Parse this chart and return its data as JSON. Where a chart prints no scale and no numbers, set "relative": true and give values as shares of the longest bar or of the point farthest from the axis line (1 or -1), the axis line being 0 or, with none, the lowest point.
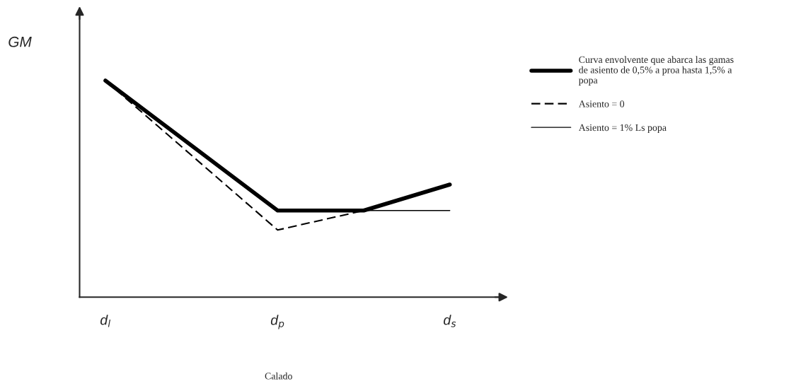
{
  "chart_data": {
    "type": "line",
    "relative": true,
    "ylabel": "GM",
    "xlabel": "Calado",
    "categories": [
      "d$_{l}$",
      null,
      "d$_{p}$",
      null,
      "d$_{s}$"
    ],
    "legend": "right",
    "grid": false,
    "marker": "none",
    "series": [
      {
        "name": "Curva envolvente que abarca las gamas\nde asiento de 0,5% a proa hasta 1,5% a\npopa",
        "color": "#000000",
        "line_style": "solid",
        "values": [
          1.0,
          null,
          0.4,
          0.4,
          0.52
        ]
      },
      {
        "name": "Asiento = 0",
        "color": "#000000",
        "line_style": "dashed",
        "values": [
          1.0,
          null,
          0.31,
          0.4,
          null
        ]
      },
      {
        "name": "Asiento = 1% Ls popa",
        "color": "#000000",
        "line_style": "solid",
        "values": [
          1.0,
          null,
          0.4,
          0.4,
          0.4
        ]
      }
    ]
  }
}
